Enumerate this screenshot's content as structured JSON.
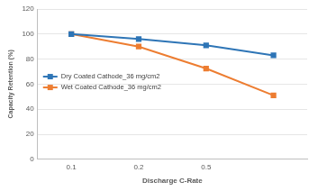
{
  "chart_data": {
    "type": "line",
    "x_label": "Discharge C-Rate",
    "y_label": "Capacity Retention (%)",
    "categories": [
      "0.1",
      "0.2",
      "0.5",
      null
    ],
    "series": [
      {
        "name": "Dry Coated Cathode_36 mg/cm2",
        "color": "#2e75b6",
        "marker": "square",
        "values": [
          100,
          96,
          91,
          83
        ]
      },
      {
        "name": "Wet Coated Cathode_36 mg/cm2",
        "color": "#ed7d31",
        "marker": "square",
        "values": [
          100,
          90,
          72.5,
          51
        ]
      }
    ],
    "ylim": [
      0,
      120
    ],
    "yticks": [
      0,
      20,
      40,
      60,
      80,
      100,
      120
    ],
    "grid": true,
    "legend": "left"
  }
}
